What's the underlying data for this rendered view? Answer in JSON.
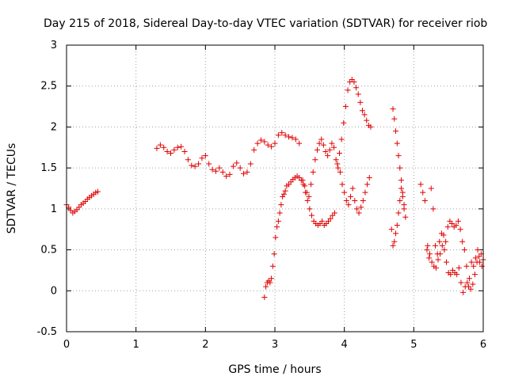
{
  "chart_data": {
    "type": "scatter",
    "title": "Day 215 of 2018, Sidereal Day-to-day VTEC variation (SDTVAR) for receiver riob",
    "xlabel": "GPS time / hours",
    "ylabel": "SDTVAR / TECUs",
    "xlim": [
      0,
      6
    ],
    "ylim": [
      -0.5,
      3
    ],
    "x_ticks": [
      0,
      1,
      2,
      3,
      4,
      5,
      6
    ],
    "x_tick_labels": [
      "0",
      "1",
      "2",
      "3",
      "4",
      "5",
      "6"
    ],
    "y_ticks": [
      -0.5,
      0,
      0.5,
      1,
      1.5,
      2,
      2.5,
      3
    ],
    "y_tick_labels": [
      "-0.5",
      "0",
      "0.5",
      "1",
      "1.5",
      "2",
      "2.5",
      "3"
    ],
    "grid": true,
    "marker": "+",
    "color": "#e00000",
    "series": [
      {
        "name": "s1",
        "x": [
          0.0,
          0.03,
          0.06,
          0.09,
          0.12,
          0.15,
          0.18,
          0.21,
          0.24,
          0.27,
          0.3,
          0.33,
          0.36,
          0.39,
          0.42,
          0.45
        ],
        "y": [
          1.05,
          1.02,
          0.98,
          0.95,
          0.97,
          0.99,
          1.02,
          1.05,
          1.07,
          1.09,
          1.12,
          1.14,
          1.16,
          1.18,
          1.2,
          1.21
        ]
      },
      {
        "name": "s2",
        "x": [
          1.3,
          1.35,
          1.4,
          1.45,
          1.5,
          1.55,
          1.6,
          1.65,
          1.7,
          1.75,
          1.8,
          1.85,
          1.9,
          1.95,
          2.0,
          2.05,
          2.1,
          2.15,
          2.2,
          2.25,
          2.3,
          2.35,
          2.4,
          2.45,
          2.5,
          2.55,
          2.6,
          2.65,
          2.7,
          2.75,
          2.8,
          2.85,
          2.9,
          2.95,
          3.0,
          3.05,
          3.1,
          3.15,
          3.2,
          3.25,
          3.3,
          3.35
        ],
        "y": [
          1.74,
          1.78,
          1.75,
          1.7,
          1.68,
          1.72,
          1.75,
          1.76,
          1.7,
          1.6,
          1.53,
          1.52,
          1.55,
          1.62,
          1.65,
          1.55,
          1.48,
          1.46,
          1.5,
          1.45,
          1.4,
          1.42,
          1.52,
          1.56,
          1.5,
          1.43,
          1.45,
          1.55,
          1.72,
          1.8,
          1.84,
          1.82,
          1.78,
          1.76,
          1.8,
          1.9,
          1.93,
          1.9,
          1.88,
          1.87,
          1.85,
          1.8
        ]
      },
      {
        "name": "s3",
        "x": [
          2.85,
          2.87,
          2.89,
          2.91,
          2.93,
          2.95,
          2.97,
          2.99,
          3.01,
          3.03,
          3.05,
          3.07,
          3.09,
          3.11,
          3.13,
          3.15,
          3.17,
          3.2,
          3.23,
          3.26,
          3.29,
          3.32,
          3.35,
          3.38,
          3.41,
          3.44,
          3.47,
          3.5,
          3.53,
          3.56,
          3.59,
          3.62,
          3.65,
          3.68,
          3.71,
          3.74,
          3.77,
          3.8,
          3.83,
          3.86
        ],
        "y": [
          -0.08,
          0.05,
          0.1,
          0.12,
          0.1,
          0.15,
          0.3,
          0.45,
          0.65,
          0.78,
          0.85,
          0.95,
          1.05,
          1.15,
          1.18,
          1.22,
          1.28,
          1.3,
          1.33,
          1.36,
          1.38,
          1.4,
          1.38,
          1.35,
          1.3,
          1.2,
          1.1,
          1.0,
          0.92,
          0.85,
          0.82,
          0.8,
          0.82,
          0.85,
          0.8,
          0.82,
          0.85,
          0.88,
          0.92,
          0.95
        ]
      },
      {
        "name": "s4",
        "x": [
          3.4,
          3.43,
          3.46,
          3.49,
          3.52,
          3.55,
          3.58,
          3.61,
          3.64,
          3.67,
          3.7,
          3.73,
          3.76,
          3.79,
          3.82,
          3.85,
          3.88,
          3.91,
          3.94,
          3.97,
          4.0,
          4.03,
          4.06,
          4.09,
          4.12,
          4.15,
          4.18,
          4.21,
          4.24,
          4.27,
          4.3,
          4.33,
          4.36
        ],
        "y": [
          1.35,
          1.28,
          1.2,
          1.15,
          1.3,
          1.45,
          1.6,
          1.72,
          1.8,
          1.85,
          1.78,
          1.7,
          1.65,
          1.72,
          1.8,
          1.75,
          1.6,
          1.5,
          1.45,
          1.3,
          1.2,
          1.1,
          1.05,
          1.15,
          1.25,
          1.1,
          1.0,
          0.95,
          1.02,
          1.1,
          1.2,
          1.3,
          1.38
        ]
      },
      {
        "name": "s5",
        "x": [
          3.9,
          3.93,
          3.96,
          3.99,
          4.02,
          4.05,
          4.08,
          4.11,
          4.14,
          4.17,
          4.2,
          4.23,
          4.26,
          4.29,
          4.32,
          4.35,
          4.38
        ],
        "y": [
          1.55,
          1.68,
          1.85,
          2.05,
          2.25,
          2.45,
          2.55,
          2.58,
          2.55,
          2.48,
          2.4,
          2.3,
          2.2,
          2.15,
          2.08,
          2.02,
          2.0
        ]
      },
      {
        "name": "s6",
        "x": [
          4.7,
          4.72,
          4.74,
          4.76,
          4.78,
          4.8,
          4.82,
          4.84,
          4.86,
          4.88
        ],
        "y": [
          2.22,
          2.1,
          1.95,
          1.8,
          1.65,
          1.5,
          1.35,
          1.2,
          1.05,
          0.9
        ]
      },
      {
        "name": "s7",
        "x": [
          4.68,
          4.7,
          4.72,
          4.74,
          4.76,
          4.78,
          4.8,
          4.82,
          4.84,
          4.86
        ],
        "y": [
          0.75,
          0.55,
          0.6,
          0.7,
          0.8,
          0.95,
          1.1,
          1.25,
          1.15,
          1.0
        ]
      },
      {
        "name": "s8",
        "x": [
          5.1,
          5.13,
          5.16,
          5.19,
          5.22,
          5.25,
          5.28,
          5.31,
          5.34,
          5.37,
          5.4,
          5.43,
          5.46,
          5.49,
          5.52,
          5.55,
          5.58,
          5.61,
          5.64,
          5.67,
          5.7,
          5.73,
          5.76,
          5.79,
          5.82,
          5.85,
          5.88,
          5.91,
          5.94,
          5.97,
          6.0
        ],
        "y": [
          1.3,
          1.2,
          1.1,
          0.5,
          0.4,
          1.25,
          1.0,
          0.55,
          0.45,
          0.6,
          0.7,
          0.68,
          0.6,
          0.78,
          0.85,
          0.82,
          0.78,
          0.8,
          0.85,
          0.75,
          0.6,
          0.5,
          0.3,
          0.05,
          0.02,
          0.08,
          0.2,
          0.35,
          0.42,
          0.45,
          0.38
        ]
      },
      {
        "name": "s9",
        "x": [
          5.2,
          5.23,
          5.26,
          5.29,
          5.32,
          5.35,
          5.38,
          5.41,
          5.44,
          5.47,
          5.5,
          5.53,
          5.56,
          5.59,
          5.62,
          5.65,
          5.68,
          5.71,
          5.74,
          5.77,
          5.8,
          5.83,
          5.86,
          5.89,
          5.92,
          5.95,
          5.98
        ],
        "y": [
          0.55,
          0.45,
          0.35,
          0.3,
          0.28,
          0.38,
          0.45,
          0.55,
          0.5,
          0.35,
          0.22,
          0.2,
          0.25,
          0.22,
          0.2,
          0.28,
          0.1,
          -0.02,
          0.05,
          0.1,
          0.15,
          0.35,
          0.3,
          0.4,
          0.5,
          0.35,
          0.3
        ]
      }
    ]
  }
}
